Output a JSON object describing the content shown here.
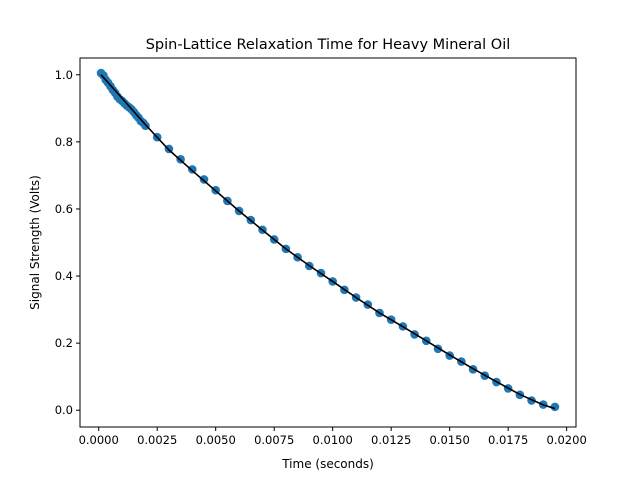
{
  "chart_data": {
    "type": "scatter",
    "title": "Spin-Lattice Relaxation Time for Heavy Mineral Oil",
    "xlabel": "Time (seconds)",
    "ylabel": "Signal Strength (Volts)",
    "xlim": [
      -0.0008,
      0.0204
    ],
    "ylim": [
      -0.05,
      1.05
    ],
    "x_ticks": [
      0.0,
      0.0025,
      0.005,
      0.0075,
      0.01,
      0.0125,
      0.015,
      0.0175,
      0.02
    ],
    "x_tick_labels": [
      "0.0000",
      "0.0025",
      "0.0050",
      "0.0075",
      "0.0100",
      "0.0125",
      "0.0150",
      "0.0175",
      "0.0200"
    ],
    "y_ticks": [
      0.0,
      0.2,
      0.4,
      0.6,
      0.8,
      1.0
    ],
    "y_tick_labels": [
      "0.0",
      "0.2",
      "0.4",
      "0.6",
      "0.8",
      "1.0"
    ],
    "grid": false,
    "series": [
      {
        "kind": "scatter",
        "color": "#1f77b4",
        "x": [
          0.0001,
          0.0002,
          0.0003,
          0.0004,
          0.0005,
          0.0006,
          0.0007,
          0.0008,
          0.0009,
          0.001,
          0.0011,
          0.0012,
          0.0013,
          0.0014,
          0.0015,
          0.0016,
          0.0017,
          0.0018,
          0.0019,
          0.002,
          0.0025,
          0.003,
          0.0035,
          0.004,
          0.0045,
          0.005,
          0.0055,
          0.006,
          0.0065,
          0.007,
          0.0075,
          0.008,
          0.0085,
          0.009,
          0.0095,
          0.01,
          0.0105,
          0.011,
          0.0115,
          0.012,
          0.0125,
          0.013,
          0.0135,
          0.014,
          0.0145,
          0.015,
          0.0155,
          0.016,
          0.0165,
          0.017,
          0.0175,
          0.018,
          0.0185,
          0.019,
          0.0195
        ],
        "y": [
          1.005,
          0.998,
          0.985,
          0.976,
          0.966,
          0.955,
          0.946,
          0.935,
          0.927,
          0.922,
          0.915,
          0.908,
          0.903,
          0.897,
          0.889,
          0.88,
          0.872,
          0.862,
          0.857,
          0.848,
          0.814,
          0.779,
          0.748,
          0.718,
          0.688,
          0.656,
          0.624,
          0.594,
          0.567,
          0.538,
          0.509,
          0.481,
          0.456,
          0.43,
          0.409,
          0.384,
          0.359,
          0.336,
          0.315,
          0.29,
          0.27,
          0.25,
          0.226,
          0.207,
          0.183,
          0.163,
          0.145,
          0.122,
          0.103,
          0.084,
          0.065,
          0.046,
          0.029,
          0.017,
          0.01
        ]
      },
      {
        "kind": "line",
        "color": "#000000",
        "x": [
          0.0001,
          0.001,
          0.002,
          0.003,
          0.004,
          0.005,
          0.006,
          0.007,
          0.008,
          0.009,
          0.01,
          0.011,
          0.012,
          0.013,
          0.014,
          0.015,
          0.016,
          0.017,
          0.018,
          0.019,
          0.0195
        ],
        "y": [
          1.0,
          0.93,
          0.851,
          0.776,
          0.714,
          0.654,
          0.594,
          0.537,
          0.481,
          0.431,
          0.384,
          0.336,
          0.29,
          0.249,
          0.207,
          0.165,
          0.124,
          0.085,
          0.047,
          0.016,
          0.005
        ]
      }
    ]
  }
}
